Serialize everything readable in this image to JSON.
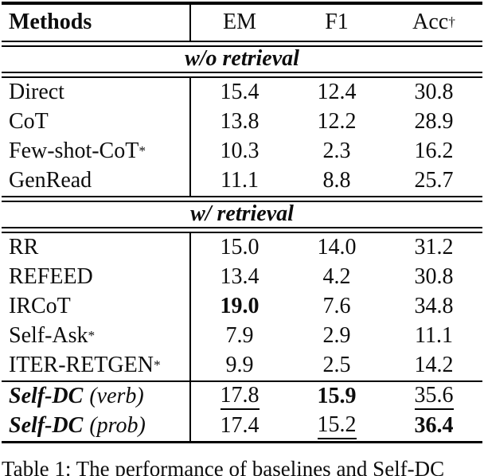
{
  "colors": {
    "background": "#ffffff",
    "text": "#0d0d0d",
    "rule": "#000000"
  },
  "table": {
    "header": {
      "methods_label": "Methods",
      "col_em": "EM",
      "col_f1": "F1",
      "col_acc": "Acc",
      "acc_superscript": "†"
    },
    "section_without": {
      "label": "w/o retrieval",
      "rows": [
        {
          "method": "Direct",
          "sup": "",
          "em": "15.4",
          "f1": "12.4",
          "acc": "30.8"
        },
        {
          "method": "CoT",
          "sup": "",
          "em": "13.8",
          "f1": "12.2",
          "acc": "28.9"
        },
        {
          "method": "Few-shot-CoT",
          "sup": "*",
          "em": "10.3",
          "f1": "2.3",
          "acc": "16.2"
        },
        {
          "method": "GenRead",
          "sup": "",
          "em": "11.1",
          "f1": "8.8",
          "acc": "25.7"
        }
      ]
    },
    "section_with": {
      "label": "w/ retrieval",
      "rows": [
        {
          "method": "RR",
          "sup": "",
          "em": "15.0",
          "f1": "14.0",
          "acc": "31.2"
        },
        {
          "method": "REFEED",
          "sup": "",
          "em": "13.4",
          "f1": "4.2",
          "acc": "30.8"
        },
        {
          "method": "IRCoT",
          "sup": "",
          "em": "19.0",
          "f1": "7.6",
          "acc": "34.8",
          "em_style": "bold"
        },
        {
          "method": "Self-Ask",
          "sup": "*",
          "em": "7.9",
          "f1": "2.9",
          "acc": "11.1"
        },
        {
          "method": "ITER-RETGEN",
          "sup": "*",
          "em": "9.9",
          "f1": "2.5",
          "acc": "14.2"
        }
      ]
    },
    "section_ours": {
      "rows": [
        {
          "method_name": "Self-DC",
          "method_variant": "(verb)",
          "em": "17.8",
          "f1": "15.9",
          "acc": "35.6",
          "em_style": "underline",
          "f1_style": "bold",
          "acc_style": "underline"
        },
        {
          "method_name": "Self-DC",
          "method_variant": "(prob)",
          "em": "17.4",
          "f1": "15.2",
          "acc": "36.4",
          "f1_style": "underline",
          "acc_style": "bold"
        }
      ]
    }
  },
  "caption": "Table 1: The performance of baselines and Self-DC"
}
